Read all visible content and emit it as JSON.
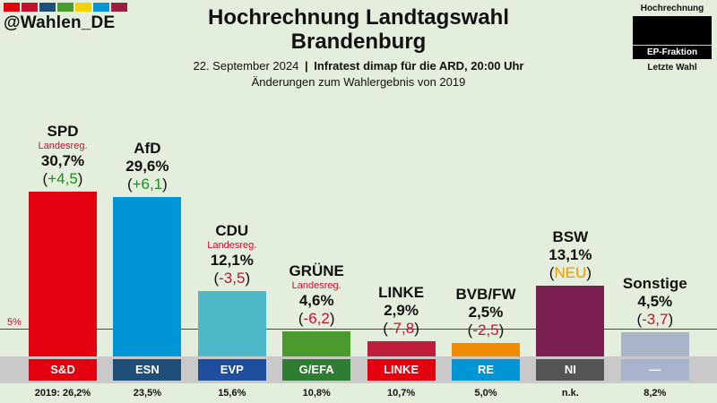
{
  "brand": {
    "name": "@Wahlen_DE",
    "stripe_colors": [
      "#e3000f",
      "#c8102e",
      "#1f4e79",
      "#4a9a2e",
      "#f2d200",
      "#0096d6",
      "#9c1f3f"
    ]
  },
  "header": {
    "title_line1": "Hochrechnung Landtagswahl",
    "title_line2": "Brandenburg",
    "date": "22. September 2024",
    "separator": "|",
    "source": "Infratest dimap für die ARD, 20:00 Uhr",
    "note": "Änderungen zum Wahlergebnis von 2019"
  },
  "legend": {
    "top_label": "Hochrechnung",
    "middle_label": "EP-Fraktion",
    "bottom_label": "Letzte Wahl"
  },
  "threshold": {
    "label": "5%",
    "value": 5
  },
  "chart_data": {
    "type": "bar",
    "title": "Hochrechnung Landtagswahl Brandenburg",
    "subtitle": "22. September 2024 | Infratest dimap für die ARD, 20:00 Uhr",
    "unit": "%",
    "ylim": [
      0,
      33
    ],
    "categories": [
      "SPD",
      "AfD",
      "CDU",
      "GRÜNE",
      "LINKE",
      "BVB/FW",
      "BSW",
      "Sonstige"
    ],
    "values": [
      30.7,
      29.6,
      12.1,
      4.6,
      2.9,
      2.5,
      13.1,
      4.5
    ],
    "value_labels": [
      "30,7%",
      "29,6%",
      "12,1%",
      "4,6%",
      "2,9%",
      "2,5%",
      "13,1%",
      "4,5%"
    ],
    "changes": [
      "+4,5",
      "+6,1",
      "-3,5",
      "-6,2",
      "-7,8",
      "-2,5",
      "NEU",
      "-3,7"
    ],
    "change_colors": [
      "#1a8f1a",
      "#1a8f1a",
      "#c8102e",
      "#c8102e",
      "#c8102e",
      "#c8102e",
      "#e89c00",
      "#c8102e"
    ],
    "government": [
      "Landesreg.",
      "",
      "Landesreg.",
      "Landesreg.",
      "",
      "",
      "",
      ""
    ],
    "bar_colors": [
      "#e3000f",
      "#0096d6",
      "#4db8c8",
      "#4a9a2e",
      "#be1e3c",
      "#f08c00",
      "#7a1f4f",
      "#aab4c8"
    ],
    "ep_fraktion": [
      "S&D",
      "ESN",
      "EVP",
      "G/EFA",
      "LINKE",
      "RE",
      "NI",
      "—"
    ],
    "ep_colors": [
      "#e3000f",
      "#1f4e79",
      "#1f4e9e",
      "#2e7d32",
      "#e3000f",
      "#0096d6",
      "#555555",
      "#a8b4cc"
    ],
    "last_election": [
      "2019: 26,2%",
      "23,5%",
      "15,6%",
      "10,8%",
      "10,7%",
      "5,0%",
      "n.k.",
      "8,2%"
    ],
    "last_election_values": [
      26.2,
      23.5,
      15.6,
      10.8,
      10.7,
      5.0,
      null,
      8.2
    ]
  }
}
